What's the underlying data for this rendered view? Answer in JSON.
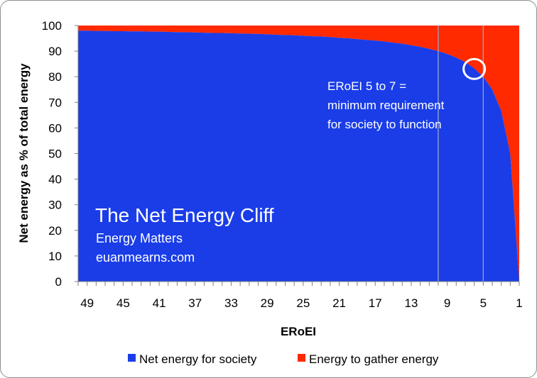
{
  "chart_data": {
    "type": "area",
    "xlabel": "ERoEI",
    "ylabel": "Net energy as % of total energy",
    "ylim": [
      0,
      100
    ],
    "xlim": [
      50,
      1
    ],
    "x_reversed": true,
    "x_ticks": [
      "49",
      "45",
      "41",
      "37",
      "33",
      "29",
      "25",
      "21",
      "17",
      "13",
      "9",
      "5",
      "1"
    ],
    "y_ticks": [
      "0",
      "10",
      "20",
      "30",
      "40",
      "50",
      "60",
      "70",
      "80",
      "90",
      "100"
    ],
    "x": [
      50,
      49,
      48,
      47,
      46,
      45,
      44,
      43,
      42,
      41,
      40,
      39,
      38,
      37,
      36,
      35,
      34,
      33,
      32,
      31,
      30,
      29,
      28,
      27,
      26,
      25,
      24,
      23,
      22,
      21,
      20,
      19,
      18,
      17,
      16,
      15,
      14,
      13,
      12,
      11,
      10,
      9,
      8,
      7,
      6,
      5,
      4,
      3,
      2,
      1
    ],
    "series": [
      {
        "name": "Net energy for society",
        "color": "#1a3de8",
        "values": [
          98.0,
          98.0,
          97.9,
          97.9,
          97.8,
          97.8,
          97.7,
          97.7,
          97.6,
          97.6,
          97.5,
          97.4,
          97.4,
          97.3,
          97.2,
          97.1,
          97.1,
          97.0,
          96.9,
          96.8,
          96.7,
          96.6,
          96.4,
          96.3,
          96.2,
          96.0,
          95.8,
          95.7,
          95.5,
          95.2,
          95.0,
          94.7,
          94.4,
          94.1,
          93.8,
          93.3,
          92.9,
          92.3,
          91.7,
          90.9,
          90.0,
          88.9,
          87.5,
          85.7,
          83.3,
          80.0,
          75.0,
          66.7,
          50.0,
          0.0
        ]
      },
      {
        "name": "Energy to gather energy",
        "color": "#ff2a00",
        "values": [
          2.0,
          2.0,
          2.1,
          2.1,
          2.2,
          2.2,
          2.3,
          2.3,
          2.4,
          2.4,
          2.5,
          2.6,
          2.6,
          2.7,
          2.8,
          2.9,
          2.9,
          3.0,
          3.1,
          3.2,
          3.3,
          3.4,
          3.6,
          3.7,
          3.8,
          4.0,
          4.2,
          4.3,
          4.5,
          4.8,
          5.0,
          5.3,
          5.6,
          5.9,
          6.2,
          6.7,
          7.1,
          7.7,
          8.3,
          9.1,
          10.0,
          11.1,
          12.5,
          14.3,
          16.7,
          20.0,
          25.0,
          33.3,
          50.0,
          100.0
        ]
      }
    ],
    "reference_lines_x": [
      10,
      5
    ],
    "highlight_x": 6,
    "annotation_lines": [
      "ERoEI 5 to 7 =",
      "minimum requirement",
      "for society to function"
    ],
    "title_block": {
      "title": "The Net Energy Cliff",
      "line2": "Energy Matters",
      "line3": "euanmearns.com"
    },
    "legend": [
      "Net energy for society",
      "Energy to gather energy"
    ],
    "legend_position": "bottom",
    "grid": false
  }
}
